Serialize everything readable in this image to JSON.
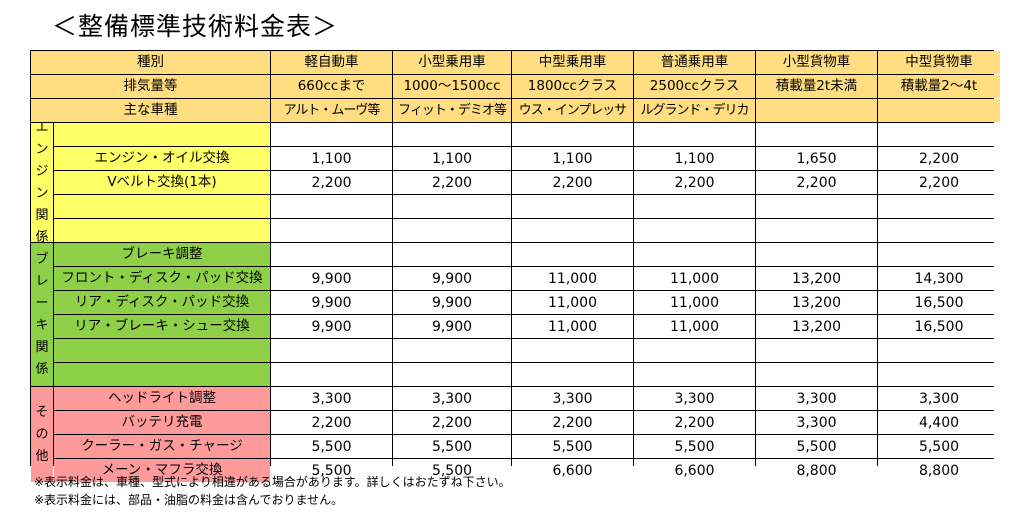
{
  "title": "＜整備標準技術料金表＞",
  "header": {
    "row1": [
      "種別",
      "軽自動車",
      "小型乗用車",
      "中型乗用車",
      "普通乗用車",
      "小型貨物車",
      "中型貨物車"
    ],
    "row2": [
      "排気量等",
      "660ccまで",
      "1000～1500cc",
      "1800ccクラス",
      "2500ccクラス",
      "積載量2t未満",
      "積載量2～4t"
    ],
    "row3": [
      "主な車種",
      "アルト・ムーヴ等",
      "フィット・デミオ等",
      "ウス・インプレッサ",
      "ルグランド・デリカ",
      "",
      ""
    ]
  },
  "groups": [
    {
      "category": [
        "エ",
        "ン",
        "ジ",
        "ン",
        "関",
        "係"
      ],
      "color": "#ffff66",
      "rows": [
        {
          "item": "",
          "prices": [
            "",
            "",
            "",
            "",
            "",
            ""
          ]
        },
        {
          "item": "エンジン・オイル交換",
          "prices": [
            "1,100",
            "1,100",
            "1,100",
            "1,100",
            "1,650",
            "2,200"
          ]
        },
        {
          "item": "Vベルト交換(1本)",
          "prices": [
            "2,200",
            "2,200",
            "2,200",
            "2,200",
            "2,200",
            "2,200"
          ]
        },
        {
          "item": "",
          "prices": [
            "",
            "",
            "",
            "",
            "",
            ""
          ]
        },
        {
          "item": "",
          "prices": [
            "",
            "",
            "",
            "",
            "",
            ""
          ]
        }
      ]
    },
    {
      "category": [
        "ブ",
        "レ",
        "ー",
        "キ",
        "関",
        "係"
      ],
      "color": "#8ed047",
      "rows": [
        {
          "item": "ブレーキ調整",
          "prices": [
            "",
            "",
            "",
            "",
            "",
            ""
          ]
        },
        {
          "item": "フロント・ディスク・パッド交換",
          "prices": [
            "9,900",
            "9,900",
            "11,000",
            "11,000",
            "13,200",
            "14,300"
          ]
        },
        {
          "item": "リア・ディスク・パッド交換",
          "prices": [
            "9,900",
            "9,900",
            "11,000",
            "11,000",
            "13,200",
            "16,500"
          ]
        },
        {
          "item": "リア・ブレーキ・シュー交換",
          "prices": [
            "9,900",
            "9,900",
            "11,000",
            "11,000",
            "13,200",
            "16,500"
          ]
        },
        {
          "item": "",
          "prices": [
            "",
            "",
            "",
            "",
            "",
            ""
          ]
        },
        {
          "item": "",
          "prices": [
            "",
            "",
            "",
            "",
            "",
            ""
          ]
        }
      ]
    },
    {
      "category": [
        "そ",
        "の",
        "他"
      ],
      "color": "#ff9a9a",
      "rows": [
        {
          "item": "ヘッドライト調整",
          "prices": [
            "3,300",
            "3,300",
            "3,300",
            "3,300",
            "3,300",
            "3,300"
          ]
        },
        {
          "item": "バッテリ充電",
          "prices": [
            "2,200",
            "2,200",
            "2,200",
            "2,200",
            "3,300",
            "4,400"
          ]
        },
        {
          "item": "クーラー・ガス・チャージ",
          "prices": [
            "5,500",
            "5,500",
            "5,500",
            "5,500",
            "5,500",
            "5,500"
          ]
        },
        {
          "item": "メーン・マフラ交換",
          "prices": [
            "5,500",
            "5,500",
            "6,600",
            "6,600",
            "8,800",
            "8,800"
          ]
        }
      ]
    }
  ],
  "notes": [
    "※表示料金は、車種、型式により相違がある場合があります。詳しくはおたずね下さい。",
    "※表示料金には、部品・油脂の料金は含んでおりません。"
  ]
}
